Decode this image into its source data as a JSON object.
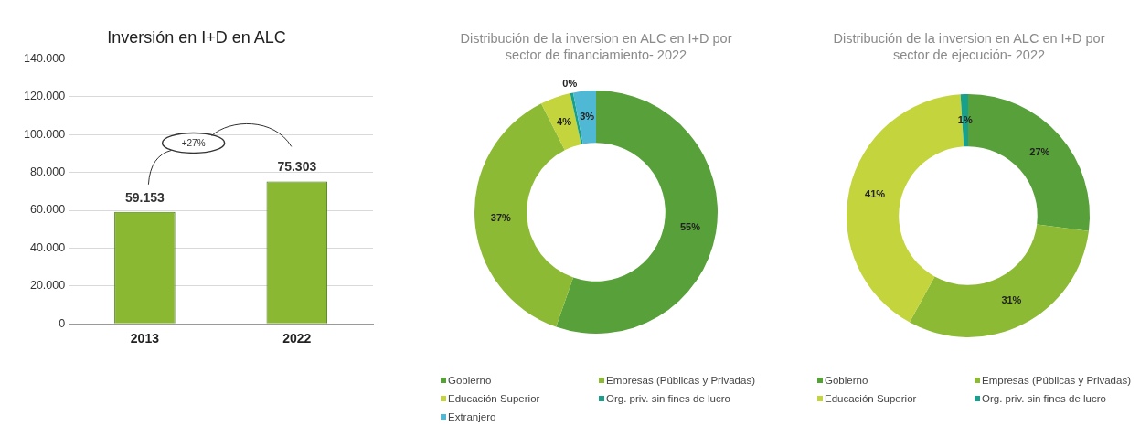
{
  "chart_data": [
    {
      "type": "bar",
      "title": "Inversión en I+D en ALC",
      "categories": [
        "2013",
        "2022"
      ],
      "values": [
        59153,
        75303
      ],
      "value_labels": [
        "59.153",
        "75.303"
      ],
      "color": "#8ab833",
      "ylim": [
        0,
        140000
      ],
      "yticks": [
        0,
        {
          "value": 20000,
          "label": "20.000"
        },
        {
          "value": 40000,
          "label": "40.000"
        },
        {
          "value": 60000,
          "label": "60.000"
        },
        {
          "value": 80000,
          "label": "80.000"
        },
        {
          "value": 100000,
          "label": "100.000"
        },
        {
          "value": 120000,
          "label": "120.000"
        },
        {
          "value": 140000,
          "label": "140.000"
        }
      ],
      "grid": "y",
      "annotations": [
        "+27%"
      ]
    },
    {
      "type": "donut",
      "title": "Distribución de la inversion en ALC en I+D por sector de financiamiento- 2022",
      "categories": [
        "Gobierno",
        "Empresas (Públicas y Privadas)",
        "Educación Superior",
        "Org. priv. sin fines de lucro",
        "Extranjero"
      ],
      "values": [
        55,
        37,
        4,
        0.4,
        3
      ],
      "value_labels": [
        "55%",
        "37%",
        "4%",
        "0%",
        "3%"
      ],
      "colors": [
        "#57a03a",
        "#8cba34",
        "#c4d43c",
        "#17a08c",
        "#4fb8d4"
      ],
      "legend": "bottom"
    },
    {
      "type": "donut",
      "title": "Distribución de la inversion en ALC en I+D por sector de ejecución- 2022",
      "categories": [
        "Gobierno",
        "Empresas (Públicas y Privadas)",
        "Educación Superior",
        "Org. priv. sin fines de lucro"
      ],
      "values": [
        27,
        31,
        41,
        1
      ],
      "value_labels": [
        "27%",
        "31%",
        "41%",
        "1%"
      ],
      "colors": [
        "#57a03a",
        "#8cba34",
        "#c4d43c",
        "#17a08c"
      ],
      "legend": "bottom"
    }
  ]
}
